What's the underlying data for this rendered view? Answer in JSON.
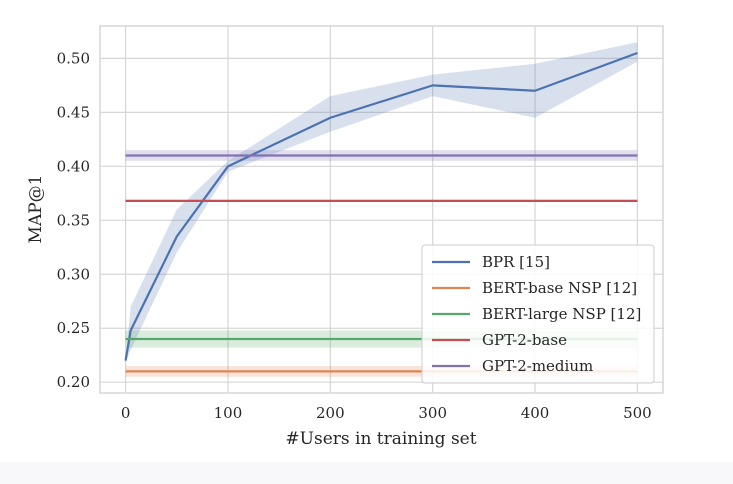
{
  "chart_data": {
    "type": "line",
    "title": "",
    "xlabel": "#Users in training set",
    "ylabel": "MAP@1",
    "xlim": [
      -25,
      525
    ],
    "ylim": [
      0.19,
      0.53
    ],
    "xticks": [
      0,
      100,
      200,
      300,
      400,
      500
    ],
    "xtick_labels": [
      "0",
      "100",
      "200",
      "300",
      "400",
      "500"
    ],
    "yticks": [
      0.2,
      0.25,
      0.3,
      0.35,
      0.4,
      0.45,
      0.5
    ],
    "ytick_labels": [
      "0.20",
      "0.25",
      "0.30",
      "0.35",
      "0.40",
      "0.45",
      "0.50"
    ],
    "grid": true,
    "legend_position": "lower-right",
    "series": [
      {
        "name": "BPR [15]",
        "color": "#4c72b0",
        "x": [
          0,
          5,
          50,
          100,
          200,
          300,
          400,
          500
        ],
        "y": [
          0.22,
          0.248,
          0.335,
          0.4,
          0.445,
          0.475,
          0.47,
          0.505
        ],
        "band_low": [
          0.218,
          0.23,
          0.32,
          0.395,
          0.432,
          0.465,
          0.445,
          0.497
        ],
        "band_high": [
          0.222,
          0.27,
          0.36,
          0.405,
          0.465,
          0.485,
          0.495,
          0.515
        ]
      },
      {
        "name": "BERT-base NSP [12]",
        "color": "#dd8452",
        "x": [
          0,
          500
        ],
        "y": [
          0.21,
          0.21
        ],
        "band_low": [
          0.205,
          0.205
        ],
        "band_high": [
          0.215,
          0.215
        ]
      },
      {
        "name": "BERT-large NSP [12]",
        "color": "#55a868",
        "x": [
          0,
          500
        ],
        "y": [
          0.24,
          0.24
        ],
        "band_low": [
          0.232,
          0.232
        ],
        "band_high": [
          0.248,
          0.248
        ]
      },
      {
        "name": "GPT-2-base",
        "color": "#c44e52",
        "x": [
          0,
          500
        ],
        "y": [
          0.368,
          0.368
        ],
        "band_low": [
          0.367,
          0.367
        ],
        "band_high": [
          0.369,
          0.369
        ]
      },
      {
        "name": "GPT-2-medium",
        "color": "#8172b3",
        "x": [
          0,
          500
        ],
        "y": [
          0.41,
          0.41
        ],
        "band_low": [
          0.405,
          0.405
        ],
        "band_high": [
          0.415,
          0.415
        ]
      }
    ]
  }
}
